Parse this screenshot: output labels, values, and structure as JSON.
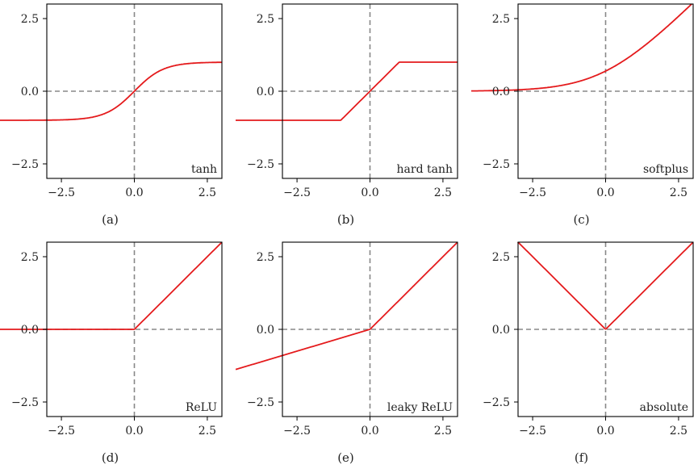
{
  "figure": {
    "panels": [
      {
        "caption": "(a)",
        "label": "tanh",
        "fn": "tanh"
      },
      {
        "caption": "(b)",
        "label": "hard tanh",
        "fn": "hardtanh"
      },
      {
        "caption": "(c)",
        "label": "softplus",
        "fn": "softplus"
      },
      {
        "caption": "(d)",
        "label": "ReLU",
        "fn": "relu"
      },
      {
        "caption": "(e)",
        "label": "leaky ReLU",
        "fn": "leaky"
      },
      {
        "caption": "(f)",
        "label": "absolute",
        "fn": "abs"
      }
    ],
    "colors": {
      "curve": "#e41a1c",
      "reference": "#888888",
      "axes": "#000000"
    }
  },
  "chart_data": [
    {
      "type": "line",
      "title": "tanh",
      "caption": "(a)",
      "xlim": [
        -3,
        3
      ],
      "ylim": [
        -3,
        3
      ],
      "xticks": [
        "−2.5",
        "0.0",
        "2.5"
      ],
      "yticks": [
        "2.5",
        "0.0",
        "−2.5"
      ],
      "series": [
        {
          "x": [
            -3,
            -2,
            -1,
            -0.5,
            0,
            0.5,
            1,
            2,
            3
          ],
          "y": [
            -1.0,
            -0.96,
            -0.76,
            -0.46,
            0,
            0.46,
            0.76,
            0.96,
            1.0
          ]
        }
      ]
    },
    {
      "type": "line",
      "title": "hard tanh",
      "caption": "(b)",
      "xlim": [
        -3,
        3
      ],
      "ylim": [
        -3,
        3
      ],
      "xticks": [
        "−2.5",
        "0.0",
        "2.5"
      ],
      "yticks": [
        "2.5",
        "0.0",
        "−2.5"
      ],
      "series": [
        {
          "x": [
            -3,
            -1,
            1,
            3
          ],
          "y": [
            -1,
            -1,
            1,
            1
          ]
        }
      ]
    },
    {
      "type": "line",
      "title": "softplus",
      "caption": "(c)",
      "xlim": [
        -3,
        3
      ],
      "ylim": [
        -3,
        3
      ],
      "xticks": [
        "−2.5",
        "0.0",
        "2.5"
      ],
      "yticks": [
        "2.5",
        "0.0",
        "−2.5"
      ],
      "series": [
        {
          "x": [
            -3,
            -2,
            -1,
            0,
            1,
            2,
            3
          ],
          "y": [
            0.05,
            0.13,
            0.31,
            0.69,
            1.31,
            2.13,
            3.05
          ]
        }
      ]
    },
    {
      "type": "line",
      "title": "ReLU",
      "caption": "(d)",
      "xlim": [
        -3,
        3
      ],
      "ylim": [
        -3,
        3
      ],
      "xticks": [
        "−2.5",
        "0.0",
        "2.5"
      ],
      "yticks": [
        "2.5",
        "0.0",
        "−2.5"
      ],
      "series": [
        {
          "x": [
            -3,
            0,
            3
          ],
          "y": [
            0,
            0,
            3
          ]
        }
      ]
    },
    {
      "type": "line",
      "title": "leaky ReLU",
      "caption": "(e)",
      "xlim": [
        -3,
        3
      ],
      "ylim": [
        -3,
        3
      ],
      "xticks": [
        "−2.5",
        "0.0",
        "2.5"
      ],
      "yticks": [
        "2.5",
        "0.0",
        "−2.5"
      ],
      "series": [
        {
          "x": [
            -3,
            0,
            3
          ],
          "y": [
            -0.9,
            0,
            3
          ]
        }
      ]
    },
    {
      "type": "line",
      "title": "absolute",
      "caption": "(f)",
      "xlim": [
        -3,
        3
      ],
      "ylim": [
        -3,
        3
      ],
      "xticks": [
        "−2.5",
        "0.0",
        "2.5"
      ],
      "yticks": [
        "2.5",
        "0.0",
        "−2.5"
      ],
      "series": [
        {
          "x": [
            -3,
            0,
            3
          ],
          "y": [
            3,
            0,
            3
          ]
        }
      ]
    }
  ]
}
